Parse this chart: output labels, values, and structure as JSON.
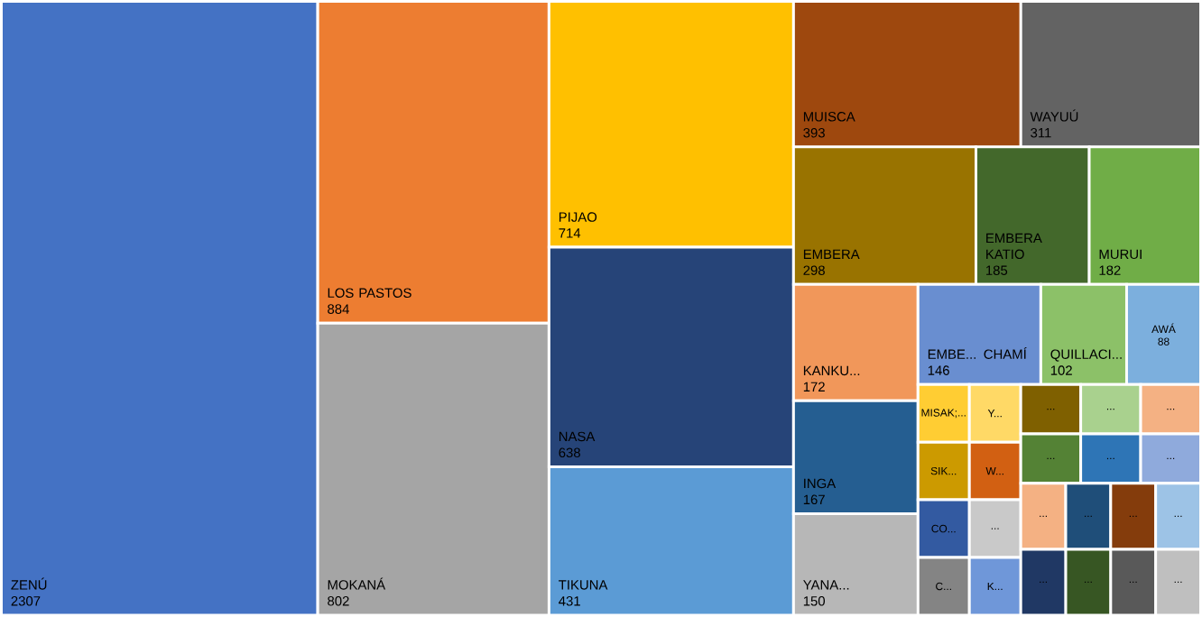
{
  "chart_data": {
    "type": "other",
    "data_labels": true,
    "categories": [
      "ZENÚ",
      "LOS PASTOS",
      "MOKANÁ",
      "PIJAO",
      "NASA ",
      "TIKUNA",
      "MUISCA",
      "WAYUÚ",
      "EMBERA",
      "EMBERA KATIO",
      "MURUI",
      "KANKU...",
      "INGA",
      "YANA...",
      "EMBE... CHAMÍ",
      "QUILLACI...",
      "AWÁ",
      "MISAK;...",
      "SIK...",
      "CO...",
      "C...",
      "Y...",
      "W...",
      "...",
      "K...",
      "...",
      "...",
      "...",
      "...",
      "...",
      "...",
      "...",
      "...",
      "...",
      "...",
      "...",
      "...",
      "...",
      "..."
    ],
    "values": [
      2307,
      884,
      802,
      714,
      638,
      431,
      393,
      311,
      298,
      185,
      182,
      172,
      167,
      150,
      146,
      102,
      88,
      null,
      null,
      null,
      null,
      null,
      null,
      null,
      null,
      null,
      null,
      null,
      null,
      null,
      null,
      null,
      null,
      null,
      null,
      null,
      null,
      null,
      null
    ],
    "colors": [
      "#4472c4",
      "#ed7d31",
      "#a5a5a5",
      "#ffc000",
      "#264478",
      "#5b9bd5",
      "#9e480e",
      "#636363",
      "#997300",
      "#43682b",
      "#70ad47",
      "#f1975a",
      "#255e91",
      "#b7b7b7",
      "#698ed0",
      "#8cc168",
      "#7cafdd",
      "#ffcd33",
      "#cc9a00",
      "#335aa1",
      "#848484",
      "#ffd966",
      "#d26012",
      "#c9c9c9",
      "#6f97d9",
      "#7f6000",
      "#a9d18e",
      "#f4b183",
      "#548235",
      "#2e75b6",
      "#8faadc",
      "#f4b183",
      "#203864",
      "#1f4e79",
      "#375623",
      "#843c0c",
      "#9dc3e6",
      "#595959",
      "#bfbfbf"
    ]
  }
}
